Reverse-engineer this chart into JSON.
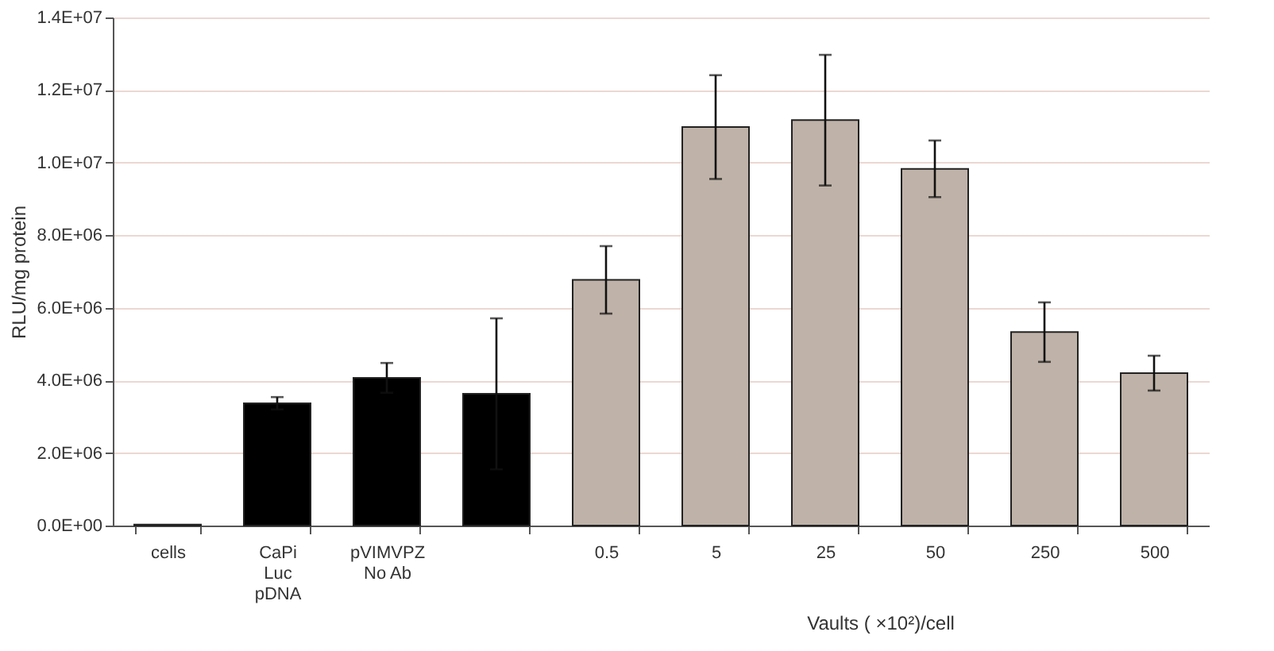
{
  "chart_data": {
    "type": "bar",
    "xlabel": "Vaults ( ×10²)/cell",
    "ylabel": "RLU/mg protein",
    "categories": [
      "cells",
      "CaPi\nLuc\npDNA",
      "pVIMVPZ\nNo Ab",
      null,
      "0.5",
      "5",
      "25",
      "50",
      "250",
      "500"
    ],
    "values": [
      30000,
      3370000,
      4070000,
      3630000,
      6770000,
      10980000,
      11170000,
      9830000,
      5330000,
      4200000
    ],
    "errors": [
      null,
      170000,
      410000,
      2080000,
      930000,
      1430000,
      1800000,
      780000,
      820000,
      480000
    ],
    "colors": [
      "#000000",
      "#000000",
      "#000000",
      "#000000",
      "#bfb2a8",
      "#bfb2a8",
      "#bfb2a8",
      "#bfb2a8",
      "#bfb2a8",
      "#bfb2a8"
    ],
    "ylim": [
      0,
      14000000
    ],
    "yticks": [
      {
        "value": 0,
        "label": "0.0E+00"
      },
      {
        "value": 2000000,
        "label": "2.0E+06"
      },
      {
        "value": 4000000,
        "label": "4.0E+06"
      },
      {
        "value": 6000000,
        "label": "6.0E+06"
      },
      {
        "value": 8000000,
        "label": "8.0E+06"
      },
      {
        "value": 10000000,
        "label": "1.0E+07"
      },
      {
        "value": 12000000,
        "label": "1.2E+07"
      },
      {
        "value": 14000000,
        "label": "1.4E+07"
      }
    ],
    "grid": "y"
  }
}
